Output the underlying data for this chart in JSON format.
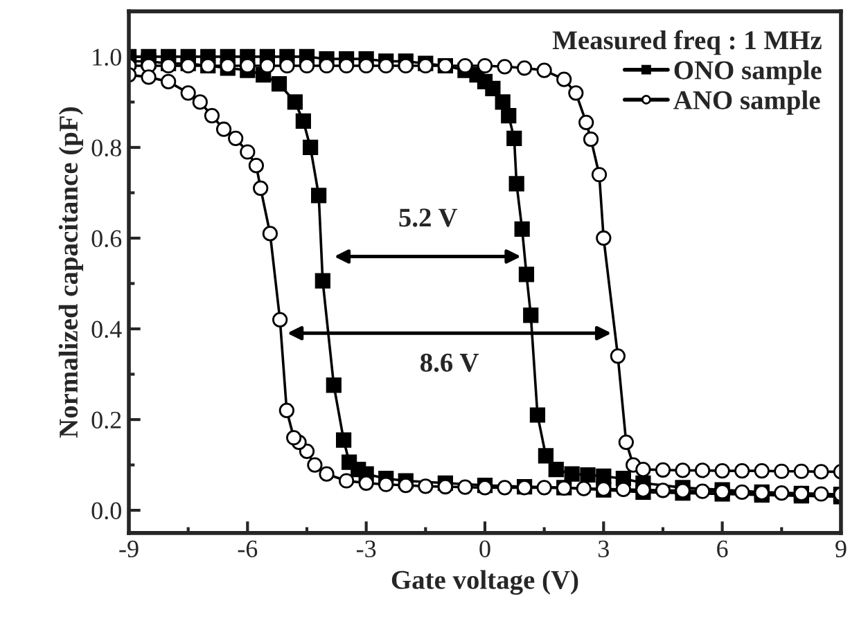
{
  "chart_data": {
    "type": "line",
    "xlabel": "Gate voltage (V)",
    "ylabel": "Normalized capacitance (pF)",
    "legend_title": "Measured freq : 1 MHz",
    "xlim": [
      -9,
      9
    ],
    "xticks": [
      -9,
      -6,
      -3,
      0,
      3,
      6,
      9
    ],
    "ylim": [
      -0.05,
      1.1
    ],
    "yticks": [
      {
        "value": 0,
        "label": "0.0"
      },
      {
        "value": 0.2,
        "label": "0.2"
      },
      {
        "value": 0.4,
        "label": "0.4"
      },
      {
        "value": 0.6,
        "label": "0.6"
      },
      {
        "value": 0.8,
        "label": "0.8"
      },
      {
        "value": 1.0,
        "label": "1.0"
      }
    ],
    "grid": false,
    "legend": "top right",
    "line_style": "solid",
    "series": [
      {
        "name": "ONO sample",
        "color": "#000000",
        "marker": "square",
        "x": [
          -9,
          -8.5,
          -8,
          -7.5,
          -7,
          -6.5,
          -6,
          -5.5,
          -5,
          -4.5,
          -4,
          -3.5,
          -3,
          -2.5,
          -2,
          -1.5,
          -1,
          -0.5,
          -0.2,
          0,
          0.2,
          0.45,
          0.6,
          0.74,
          0.8,
          0.94,
          1.05,
          1.16,
          1.33,
          1.54,
          1.8,
          2.2,
          2.6,
          3,
          3.5,
          4,
          5,
          6,
          7,
          8,
          9,
          9,
          8,
          7,
          6,
          5,
          4,
          3,
          2,
          1,
          0,
          -1,
          -2,
          -2.5,
          -3,
          -3.2,
          -3.43,
          -3.57,
          -3.82,
          -4.1,
          -4.2,
          -4.41,
          -4.59,
          -4.8,
          -5.2,
          -5.6,
          -6,
          -6.5,
          -7,
          -7.5,
          -8,
          -8.5,
          -9
        ],
        "values": [
          1.0,
          1.0,
          1.0,
          1.0,
          1.0,
          1.0,
          1.0,
          1.0,
          1.0,
          1.0,
          0.995,
          0.995,
          0.995,
          0.99,
          0.99,
          0.985,
          0.98,
          0.97,
          0.96,
          0.945,
          0.93,
          0.9,
          0.87,
          0.82,
          0.72,
          0.62,
          0.52,
          0.43,
          0.21,
          0.12,
          0.09,
          0.08,
          0.078,
          0.075,
          0.07,
          0.06,
          0.05,
          0.045,
          0.04,
          0.037,
          0.035,
          0.03,
          0.032,
          0.034,
          0.036,
          0.038,
          0.04,
          0.045,
          0.05,
          0.052,
          0.055,
          0.06,
          0.065,
          0.07,
          0.08,
          0.09,
          0.106,
          0.155,
          0.276,
          0.506,
          0.694,
          0.8,
          0.858,
          0.9,
          0.94,
          0.96,
          0.97,
          0.975,
          0.98,
          0.985,
          0.985,
          0.99,
          0.99
        ]
      },
      {
        "name": "ANO sample",
        "color": "#000000",
        "marker": "circle",
        "x": [
          -9,
          -8.5,
          -8,
          -7.5,
          -7,
          -6.5,
          -6,
          -5.5,
          -5,
          -4.5,
          -4,
          -3.5,
          -3,
          -2.5,
          -2,
          -1.5,
          -1,
          -0.5,
          0,
          0.5,
          1,
          1.5,
          2,
          2.3,
          2.56,
          2.68,
          2.89,
          3.0,
          3.36,
          3.57,
          3.75,
          4,
          4.5,
          5,
          5.5,
          6,
          6.5,
          7,
          7.5,
          8,
          8.5,
          9,
          9,
          8.5,
          8,
          7.5,
          7,
          6.5,
          6,
          5.5,
          5,
          4.5,
          4,
          3.5,
          3,
          2.5,
          2,
          1.5,
          1,
          0.5,
          0,
          -0.5,
          -1,
          -1.5,
          -2,
          -2.5,
          -3,
          -3.5,
          -4,
          -4.3,
          -4.5,
          -4.7,
          -4.83,
          -5.01,
          -5.18,
          -5.43,
          -5.67,
          -5.78,
          -6,
          -6.3,
          -6.6,
          -6.9,
          -7.2,
          -7.5,
          -8,
          -8.5,
          -9
        ],
        "values": [
          0.98,
          0.98,
          0.98,
          0.98,
          0.98,
          0.98,
          0.98,
          0.98,
          0.98,
          0.98,
          0.98,
          0.98,
          0.98,
          0.98,
          0.98,
          0.98,
          0.98,
          0.98,
          0.98,
          0.978,
          0.975,
          0.97,
          0.95,
          0.92,
          0.855,
          0.818,
          0.74,
          0.6,
          0.34,
          0.15,
          0.1,
          0.09,
          0.089,
          0.088,
          0.088,
          0.087,
          0.087,
          0.087,
          0.086,
          0.086,
          0.085,
          0.085,
          0.035,
          0.036,
          0.037,
          0.038,
          0.039,
          0.04,
          0.041,
          0.042,
          0.043,
          0.044,
          0.045,
          0.046,
          0.047,
          0.048,
          0.049,
          0.05,
          0.05,
          0.05,
          0.05,
          0.051,
          0.052,
          0.053,
          0.055,
          0.057,
          0.06,
          0.065,
          0.08,
          0.1,
          0.13,
          0.15,
          0.16,
          0.22,
          0.42,
          0.61,
          0.71,
          0.76,
          0.79,
          0.82,
          0.84,
          0.87,
          0.9,
          0.92,
          0.945,
          0.955,
          0.96
        ]
      }
    ],
    "annotations": [
      "5.2 V",
      "8.6 V"
    ]
  }
}
